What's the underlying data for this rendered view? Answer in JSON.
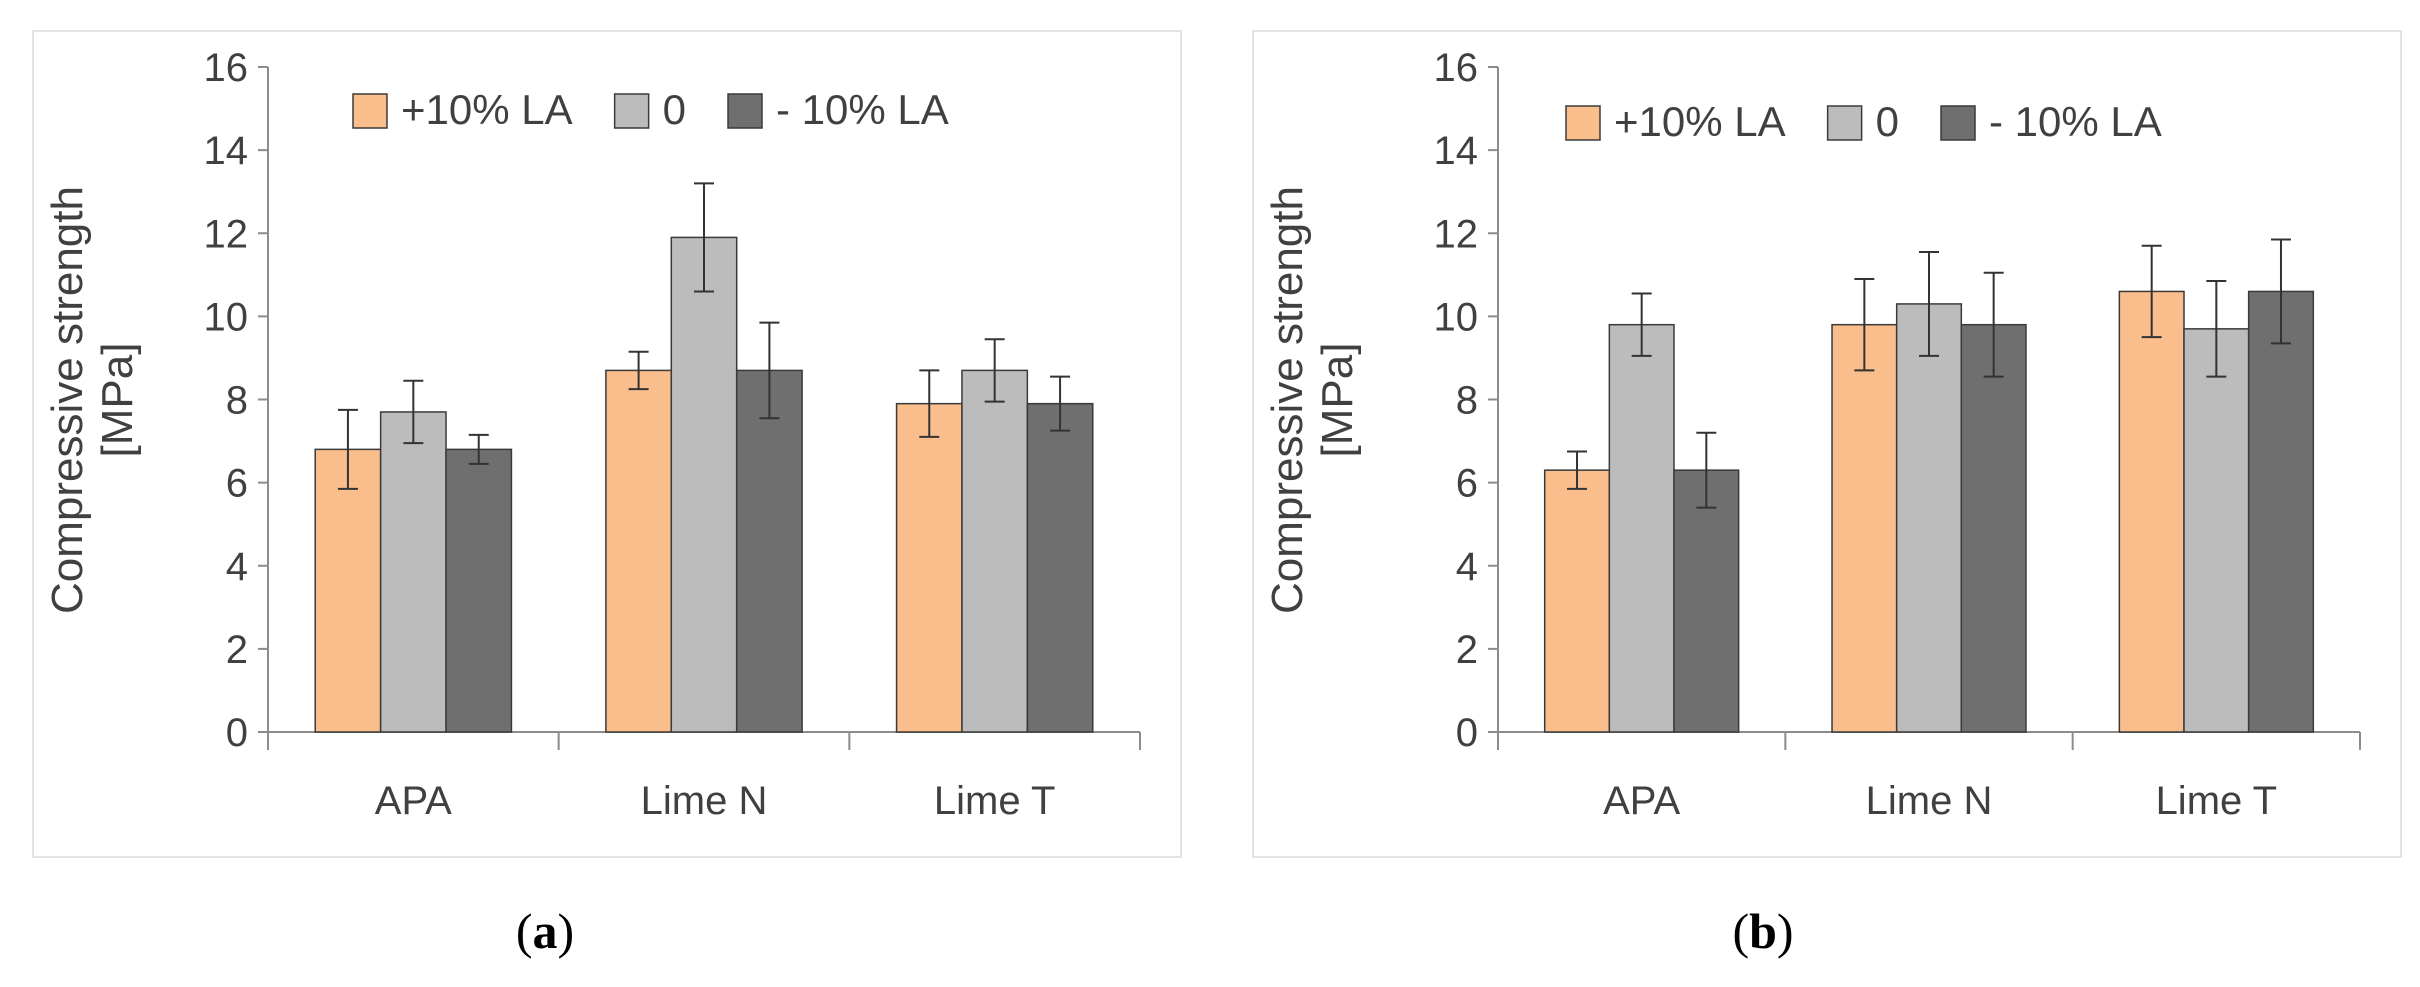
{
  "chart_data": [
    {
      "type": "bar",
      "panel": "a",
      "caption": "a",
      "ylabel": [
        "Compressive strength",
        "[MPa]"
      ],
      "xlabel": "",
      "categories": [
        "APA",
        "Lime N",
        "Lime T"
      ],
      "ylim": [
        0,
        16
      ],
      "yticks": [
        "0",
        "2",
        "4",
        "6",
        "8",
        "10",
        "12",
        "14",
        "16"
      ],
      "grid": false,
      "legend_position": "top",
      "series": [
        {
          "name": "+10% LA",
          "color": "#f9be8c",
          "values": [
            6.8,
            8.7,
            7.9
          ],
          "errors": [
            0.95,
            0.45,
            0.8
          ]
        },
        {
          "name": "0",
          "color": "#bcbcbc",
          "values": [
            7.7,
            11.9,
            8.7
          ],
          "errors": [
            0.75,
            1.3,
            0.75
          ]
        },
        {
          "name": "- 10% LA",
          "color": "#6f6f6f",
          "values": [
            6.8,
            8.7,
            7.9
          ],
          "errors": [
            0.35,
            1.15,
            0.65
          ]
        }
      ]
    },
    {
      "type": "bar",
      "panel": "b",
      "caption": "b",
      "ylabel": [
        "Compressive strength",
        "[MPa]"
      ],
      "xlabel": "",
      "categories": [
        "APA",
        "Lime N",
        "Lime T"
      ],
      "ylim": [
        0,
        16
      ],
      "yticks": [
        "0",
        "2",
        "4",
        "6",
        "8",
        "10",
        "12",
        "14",
        "16"
      ],
      "grid": false,
      "legend_position": "top",
      "series": [
        {
          "name": "+10% LA",
          "color": "#f9be8c",
          "values": [
            6.3,
            9.8,
            10.6
          ],
          "errors": [
            0.45,
            1.1,
            1.1
          ]
        },
        {
          "name": "0",
          "color": "#bcbcbc",
          "values": [
            9.8,
            10.3,
            9.7
          ],
          "errors": [
            0.75,
            1.25,
            1.15
          ]
        },
        {
          "name": "- 10% LA",
          "color": "#6f6f6f",
          "values": [
            6.3,
            9.8,
            10.6
          ],
          "errors": [
            0.9,
            1.25,
            1.25
          ]
        }
      ]
    }
  ]
}
